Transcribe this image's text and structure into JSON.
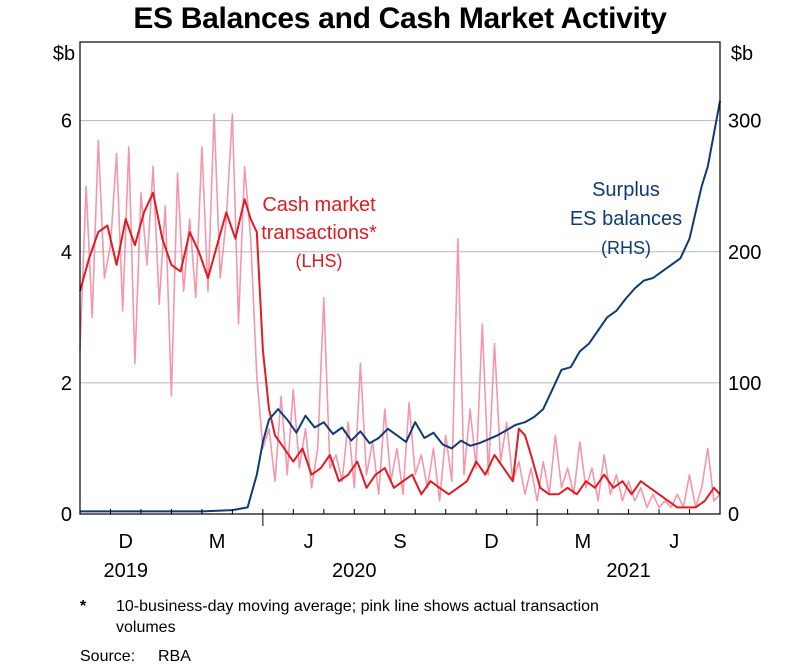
{
  "chart_data": {
    "type": "line",
    "title": "ES Balances and Cash Market Activity",
    "left_axis": {
      "unit_label": "$b",
      "ylim": [
        0,
        7.2
      ],
      "ticks": [
        0,
        2,
        4,
        6
      ]
    },
    "right_axis": {
      "unit_label": "$b",
      "ylim": [
        0,
        360
      ],
      "ticks": [
        0,
        100,
        200,
        300
      ]
    },
    "x_ticks": [
      {
        "label": "D",
        "t": 1.5
      },
      {
        "label": "M",
        "t": 4.5
      },
      {
        "label": "J",
        "t": 7.5
      },
      {
        "label": "S",
        "t": 10.5
      },
      {
        "label": "D",
        "t": 13.5
      },
      {
        "label": "M",
        "t": 16.5
      },
      {
        "label": "J",
        "t": 19.5
      }
    ],
    "year_labels": [
      {
        "label": "2019",
        "t": 1.5
      },
      {
        "label": "2020",
        "t": 9.0
      },
      {
        "label": "2021",
        "t": 18.0
      }
    ],
    "year_dividers": [
      6.0,
      15.0
    ],
    "x_range": [
      0,
      21
    ],
    "series": [
      {
        "name": "Cash market transactions (actual)",
        "axis": "left",
        "color": "#f597aa",
        "x": [
          0,
          0.2,
          0.4,
          0.6,
          0.8,
          1.0,
          1.2,
          1.4,
          1.6,
          1.8,
          2.0,
          2.2,
          2.4,
          2.6,
          2.8,
          3.0,
          3.2,
          3.4,
          3.6,
          3.8,
          4.0,
          4.2,
          4.4,
          4.6,
          4.8,
          5.0,
          5.2,
          5.4,
          5.6,
          5.8,
          6.0,
          6.2,
          6.4,
          6.6,
          6.8,
          7.0,
          7.2,
          7.4,
          7.6,
          7.8,
          8.0,
          8.2,
          8.4,
          8.6,
          8.8,
          9.0,
          9.2,
          9.4,
          9.6,
          9.8,
          10.0,
          10.2,
          10.4,
          10.6,
          10.8,
          11.0,
          11.2,
          11.4,
          11.6,
          11.8,
          12.0,
          12.2,
          12.4,
          12.6,
          12.8,
          13.0,
          13.2,
          13.4,
          13.6,
          13.8,
          14.0,
          14.2,
          14.4,
          14.6,
          14.8,
          15.0,
          15.2,
          15.4,
          15.6,
          15.8,
          16.0,
          16.2,
          16.4,
          16.6,
          16.8,
          17.0,
          17.2,
          17.4,
          17.6,
          17.8,
          18.0,
          18.2,
          18.4,
          18.6,
          18.8,
          19.0,
          19.2,
          19.4,
          19.6,
          19.8,
          20.0,
          20.2,
          20.4,
          20.6,
          20.8,
          21.0
        ],
        "values": [
          2.5,
          5.0,
          3.0,
          5.7,
          3.6,
          4.1,
          5.5,
          3.1,
          5.6,
          2.3,
          4.9,
          3.8,
          5.3,
          3.2,
          4.7,
          1.8,
          5.2,
          3.4,
          4.5,
          3.3,
          5.6,
          3.4,
          6.1,
          3.6,
          4.5,
          6.1,
          2.9,
          5.3,
          4.2,
          2.1,
          1.0,
          1.3,
          0.5,
          1.8,
          0.6,
          1.9,
          0.7,
          1.3,
          0.4,
          1.0,
          3.3,
          0.7,
          0.9,
          0.5,
          1.4,
          0.4,
          2.3,
          0.6,
          1.1,
          0.3,
          1.6,
          0.5,
          1.0,
          0.3,
          1.7,
          0.6,
          0.9,
          0.4,
          1.0,
          0.2,
          1.2,
          0.5,
          4.2,
          0.6,
          1.6,
          0.7,
          2.9,
          0.6,
          2.6,
          0.8,
          1.4,
          0.5,
          0.8,
          0.3,
          0.7,
          0.2,
          0.8,
          0.3,
          1.2,
          0.4,
          0.7,
          0.3,
          1.1,
          0.4,
          0.7,
          0.2,
          0.9,
          0.3,
          0.6,
          0.2,
          0.5,
          0.2,
          0.4,
          0.1,
          0.3,
          0.1,
          0.2,
          0.1,
          0.3,
          0.1,
          0.6,
          0.1,
          0.4,
          1.0,
          0.2,
          0.3
        ]
      },
      {
        "name": "Cash market transactions* (LHS)",
        "axis": "left",
        "color": "#e01b22",
        "x": [
          0,
          0.3,
          0.6,
          0.9,
          1.2,
          1.5,
          1.8,
          2.1,
          2.4,
          2.7,
          3.0,
          3.3,
          3.6,
          3.9,
          4.2,
          4.5,
          4.8,
          5.1,
          5.4,
          5.6,
          5.8,
          6.0,
          6.2,
          6.4,
          6.7,
          7.0,
          7.3,
          7.6,
          7.9,
          8.2,
          8.5,
          8.8,
          9.1,
          9.4,
          9.7,
          10.0,
          10.3,
          10.6,
          10.9,
          11.2,
          11.5,
          11.8,
          12.1,
          12.4,
          12.7,
          13.0,
          13.3,
          13.6,
          13.9,
          14.2,
          14.4,
          14.6,
          14.8,
          15.1,
          15.4,
          15.7,
          16.0,
          16.3,
          16.6,
          16.9,
          17.2,
          17.5,
          17.8,
          18.1,
          18.4,
          18.7,
          19.0,
          19.3,
          19.6,
          19.9,
          20.2,
          20.5,
          20.8,
          21.0
        ],
        "values": [
          3.4,
          3.9,
          4.3,
          4.4,
          3.8,
          4.5,
          4.1,
          4.6,
          4.9,
          4.2,
          3.8,
          3.7,
          4.3,
          4.0,
          3.6,
          4.1,
          4.6,
          4.2,
          4.8,
          4.5,
          4.3,
          2.5,
          1.6,
          1.2,
          1.0,
          0.8,
          1.0,
          0.6,
          0.7,
          0.9,
          0.5,
          0.6,
          0.8,
          0.4,
          0.6,
          0.7,
          0.4,
          0.5,
          0.6,
          0.3,
          0.5,
          0.4,
          0.3,
          0.4,
          0.5,
          0.8,
          0.6,
          0.9,
          0.7,
          0.5,
          1.3,
          1.2,
          0.9,
          0.4,
          0.3,
          0.3,
          0.4,
          0.3,
          0.5,
          0.4,
          0.6,
          0.4,
          0.5,
          0.3,
          0.5,
          0.4,
          0.3,
          0.2,
          0.1,
          0.1,
          0.1,
          0.2,
          0.4,
          0.3
        ]
      },
      {
        "name": "Surplus ES balances (RHS)",
        "axis": "right",
        "color": "#0d3b7a",
        "x": [
          0,
          1,
          2,
          3,
          4,
          5,
          5.5,
          5.8,
          6.0,
          6.2,
          6.5,
          6.8,
          7.1,
          7.4,
          7.7,
          8.0,
          8.3,
          8.6,
          8.9,
          9.2,
          9.5,
          9.8,
          10.1,
          10.4,
          10.7,
          11.0,
          11.3,
          11.6,
          11.9,
          12.2,
          12.5,
          12.8,
          13.1,
          13.4,
          13.7,
          14.0,
          14.3,
          14.6,
          14.9,
          15.2,
          15.5,
          15.8,
          16.1,
          16.4,
          16.7,
          17.0,
          17.3,
          17.6,
          17.9,
          18.2,
          18.5,
          18.8,
          19.1,
          19.4,
          19.7,
          20.0,
          20.2,
          20.4,
          20.6,
          20.8,
          21.0
        ],
        "values": [
          2,
          2,
          2,
          2,
          2,
          3,
          5,
          30,
          55,
          72,
          80,
          72,
          62,
          75,
          66,
          70,
          61,
          66,
          56,
          63,
          54,
          58,
          65,
          60,
          55,
          70,
          58,
          62,
          53,
          50,
          56,
          52,
          54,
          57,
          60,
          64,
          68,
          70,
          74,
          80,
          95,
          110,
          112,
          124,
          130,
          140,
          150,
          155,
          164,
          172,
          178,
          180,
          185,
          190,
          195,
          210,
          230,
          250,
          265,
          290,
          315
        ]
      }
    ],
    "annotations": {
      "cash": [
        "Cash market",
        "transactions*",
        "(LHS)"
      ],
      "es": [
        "Surplus",
        "ES balances",
        "(RHS)"
      ]
    },
    "colors": {
      "grid": "#b8b8b8",
      "axis": "#000000"
    }
  },
  "footnote": {
    "marker": "*",
    "lines": [
      "10-business-day moving average; pink line shows actual transaction",
      "volumes"
    ]
  },
  "source": {
    "label": "Source:",
    "value": "RBA"
  }
}
